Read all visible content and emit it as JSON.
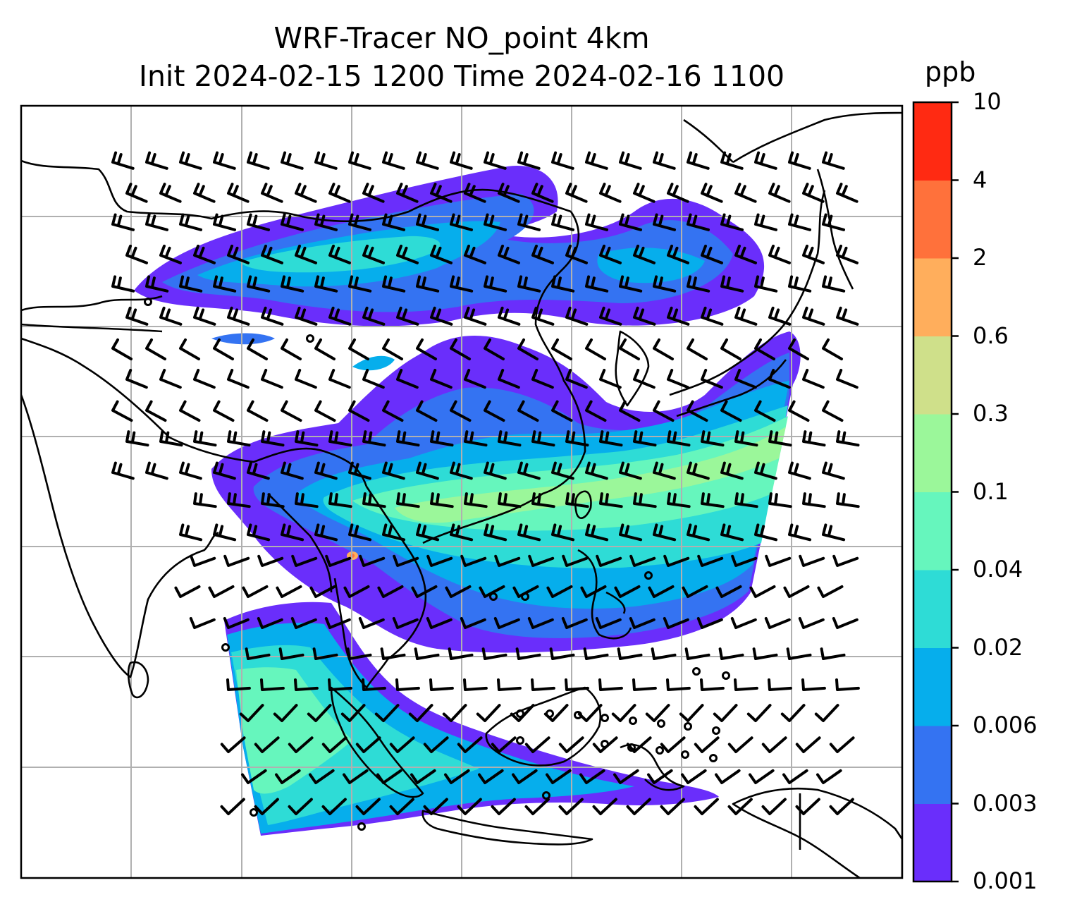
{
  "title": {
    "line1": "WRF-Tracer NO_point 4km",
    "line2": "Init 2024-02-15 1200 Time 2024-02-16 1100"
  },
  "colorbar": {
    "unit": "ppb",
    "levels": [
      "0.001",
      "0.003",
      "0.006",
      "0.02",
      "0.04",
      "0.1",
      "0.3",
      "0.6",
      "2",
      "4",
      "10"
    ],
    "colors": [
      "#6a2efb",
      "#3473f2",
      "#06aeec",
      "#2edcd6",
      "#66f6bd",
      "#9bf79a",
      "#cfe08a",
      "#ffae5c",
      "#ff713b",
      "#ff2a12"
    ]
  },
  "map": {
    "region": "South and Southeast Asia, China, Japan, Indonesia",
    "gridlines": true,
    "wind_barbs": true,
    "coastlines": true
  }
}
